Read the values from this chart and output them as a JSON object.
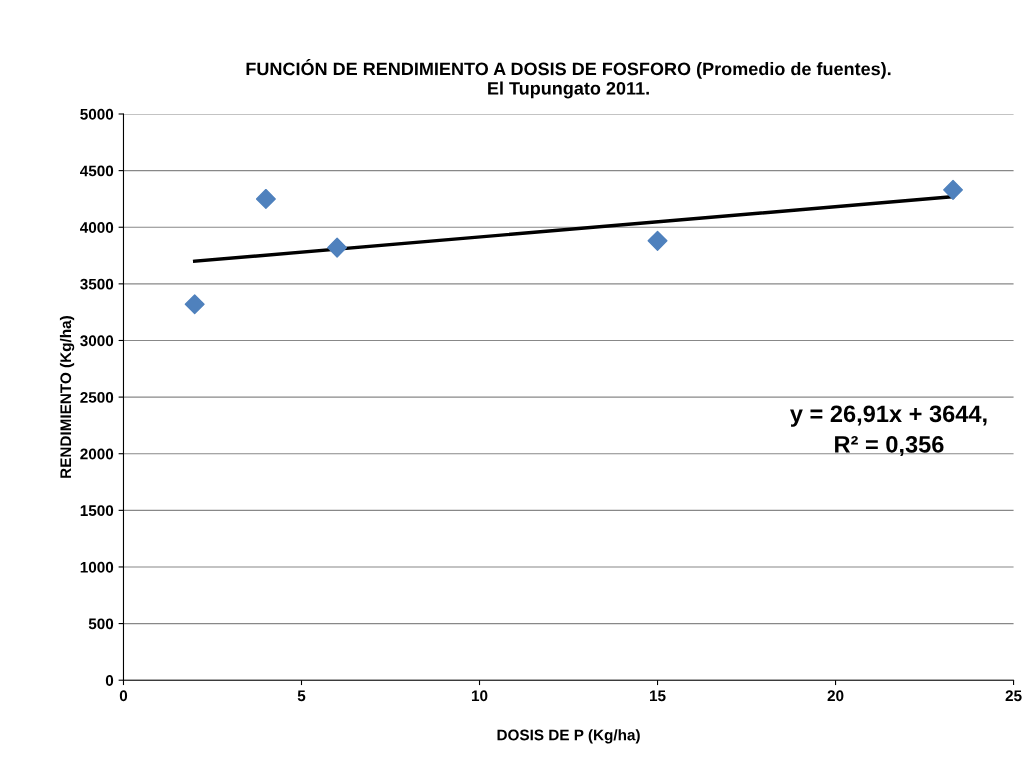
{
  "chart_data": {
    "type": "scatter",
    "title": "FUNCIÓN DE RENDIMIENTO A DOSIS DE FOSFORO (Promedio de fuentes).\nEl Tupungato 2011.",
    "xlabel": "DOSIS DE P (Kg/ha)",
    "ylabel": "RENDIMIENTO (Kg/ha)",
    "series": [
      {
        "color": "#4f81bd",
        "marker": "diamond",
        "x": [
          2,
          4,
          6,
          15,
          23.3
        ],
        "values": [
          3320,
          4250,
          3820,
          3880,
          4330
        ]
      },
      {
        "type": "line",
        "color": "#000000",
        "marker": "none",
        "line_style": "solid",
        "x": [
          2,
          23.3
        ],
        "values": [
          3700,
          4270
        ]
      }
    ],
    "annotations": [
      "y = 26,91x + 3644,\nR² = 0,356"
    ],
    "xlim": [
      0,
      25
    ],
    "xticks": [
      0,
      5,
      10,
      15,
      20,
      25
    ],
    "ylim": [
      0,
      5000
    ],
    "yticks": [
      0,
      500,
      1000,
      1500,
      2000,
      2500,
      3000,
      3500,
      4000,
      4500,
      5000
    ],
    "grid": "y"
  }
}
